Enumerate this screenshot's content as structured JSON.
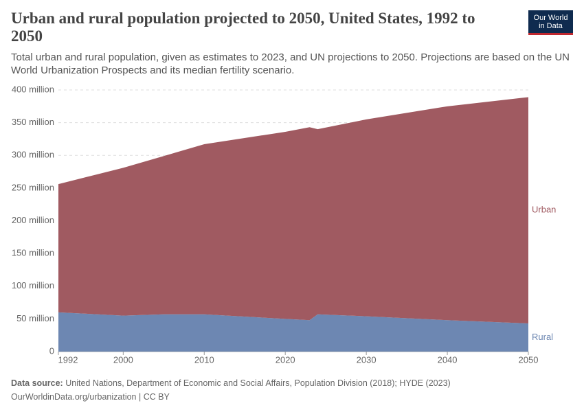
{
  "chart_data": {
    "type": "stacked-area",
    "title": "Urban and rural population projected to 2050, United States, 1992 to 2050",
    "subtitle": "Total urban and rural population, given as estimates to 2023, and UN projections to 2050. Projections are based on the UN World Urbanization Prospects and its median fertility scenario.",
    "logo": [
      "Our World",
      "in Data"
    ],
    "source_label": "Data source:",
    "source": "United Nations, Department of Economic and Social Affairs, Population Division (2018); HYDE (2023)",
    "footer": "OurWorldinData.org/urbanization | CC BY",
    "x": [
      1992,
      2000,
      2005,
      2010,
      2020,
      2023,
      2024,
      2030,
      2040,
      2050
    ],
    "series": [
      {
        "name": "Rural",
        "color": "#6d87b2",
        "values": [
          60,
          55,
          57,
          57,
          50,
          48,
          57,
          54,
          48,
          43
        ]
      },
      {
        "name": "Urban",
        "color": "#a05a61",
        "values": [
          196,
          226,
          242,
          260,
          286,
          295,
          283,
          301,
          327,
          346
        ]
      }
    ],
    "xlim": [
      1992,
      2050
    ],
    "xticks": [
      1992,
      2000,
      2010,
      2020,
      2030,
      2040,
      2050
    ],
    "ylim": [
      0,
      400
    ],
    "yticks": [
      0,
      {
        "value": 50,
        "label": "50 million"
      },
      {
        "value": 100,
        "label": "100 million"
      },
      {
        "value": 150,
        "label": "150 million"
      },
      {
        "value": 200,
        "label": "200 million"
      },
      {
        "value": 250,
        "label": "250 million"
      },
      {
        "value": 300,
        "label": "300 million"
      },
      {
        "value": 350,
        "label": "350 million"
      },
      {
        "value": 400,
        "label": "400 million"
      }
    ],
    "grid": true
  }
}
